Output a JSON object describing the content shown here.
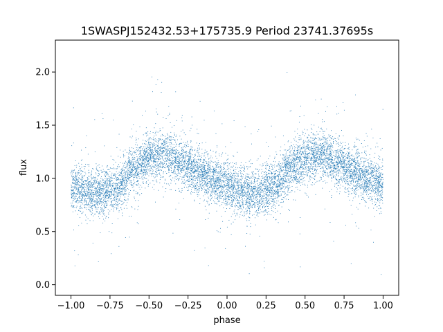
{
  "chart_data": {
    "type": "scatter",
    "title": "1SWASPJ152432.53+175735.9 Period 23741.37695s",
    "xlabel": "phase",
    "ylabel": "flux",
    "xlim": [
      -1.1,
      1.1
    ],
    "ylim": [
      -0.1,
      2.3
    ],
    "x_ticks": [
      -1.0,
      -0.75,
      -0.5,
      -0.25,
      0.0,
      0.25,
      0.5,
      0.75,
      1.0
    ],
    "x_tick_labels": [
      "−1.00",
      "−0.75",
      "−0.50",
      "−0.25",
      "0.00",
      "0.25",
      "0.50",
      "0.75",
      "1.00"
    ],
    "y_ticks": [
      0.0,
      0.5,
      1.0,
      1.5,
      2.0
    ],
    "y_tick_labels": [
      "0.0",
      "0.5",
      "1.0",
      "1.5",
      "2.0"
    ],
    "grid": false,
    "point_color": "#1f77b4",
    "trend": {
      "phase": [
        -1.0,
        -0.9,
        -0.8,
        -0.7,
        -0.6,
        -0.5,
        -0.4,
        -0.3,
        -0.2,
        -0.1,
        0.0,
        0.1,
        0.2,
        0.3,
        0.4,
        0.5,
        0.6,
        0.7,
        0.8,
        0.9,
        1.0
      ],
      "flux": [
        0.92,
        0.88,
        0.86,
        0.92,
        1.08,
        1.2,
        1.22,
        1.15,
        1.07,
        1.0,
        0.93,
        0.88,
        0.86,
        0.92,
        1.08,
        1.2,
        1.22,
        1.15,
        1.07,
        1.0,
        0.93
      ]
    },
    "scatter_sd": 0.11,
    "n_points": 9000
  }
}
